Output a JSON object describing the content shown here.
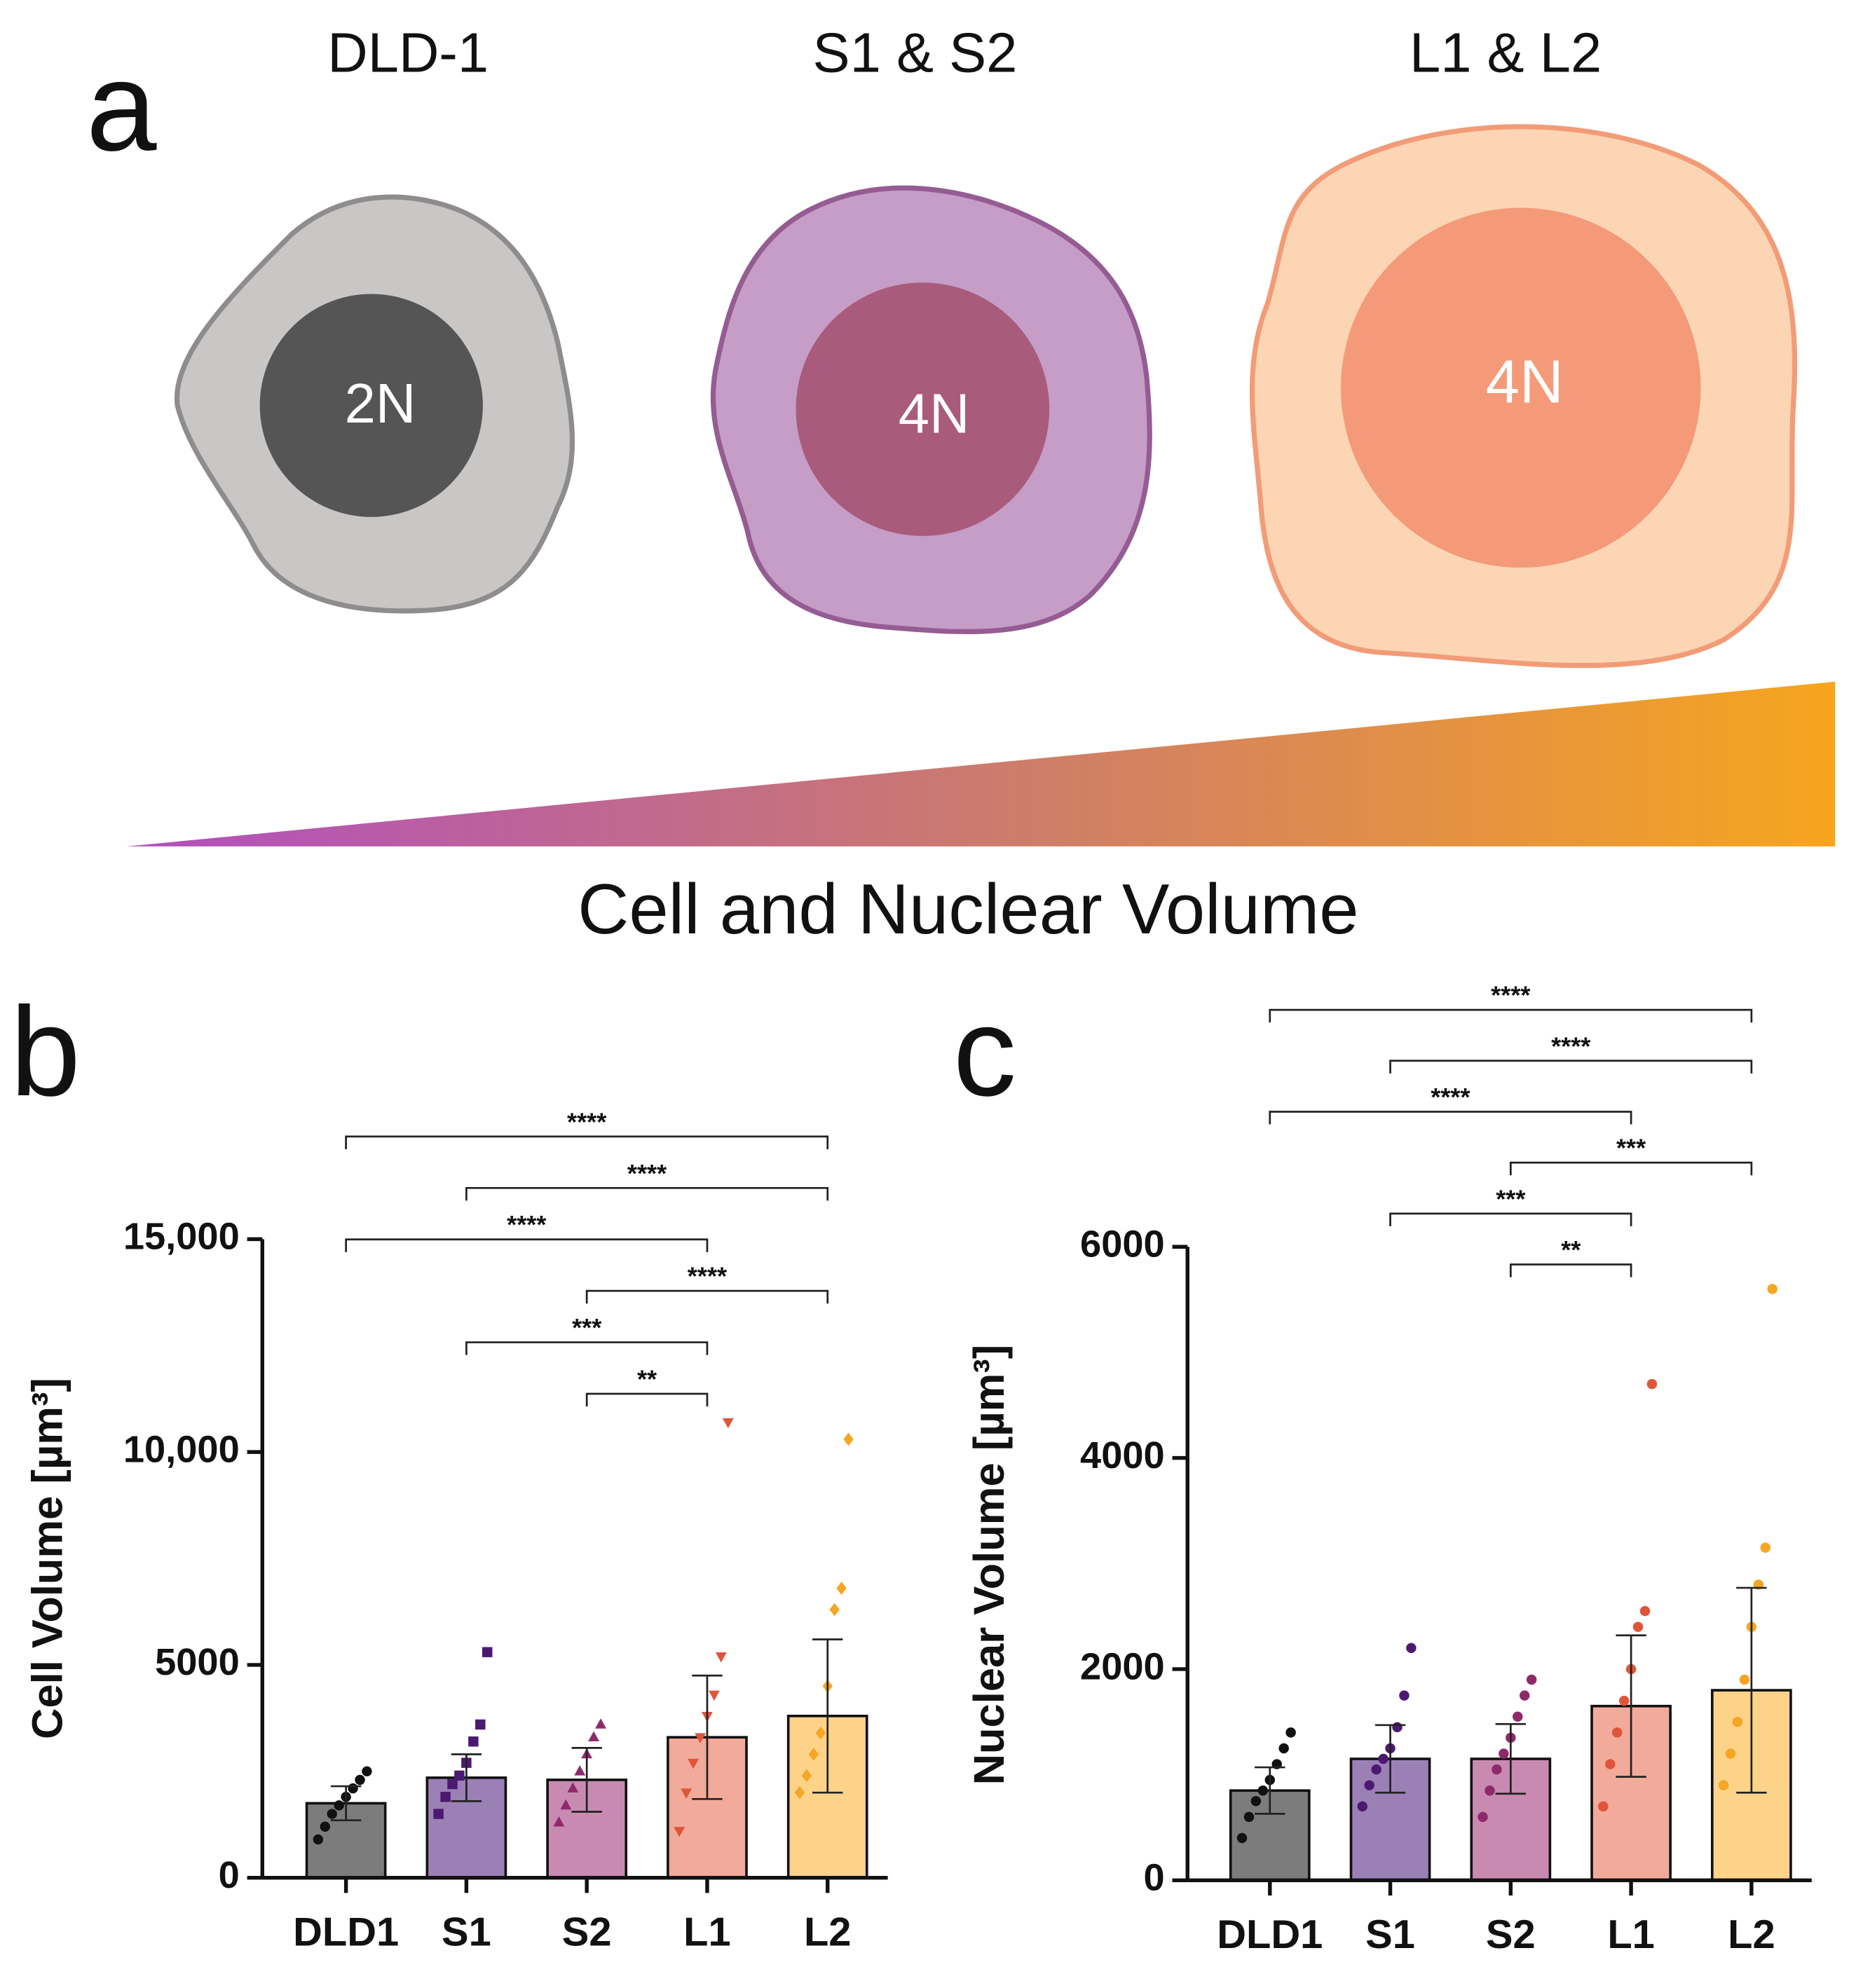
{
  "panel_labels": [
    "a",
    "b",
    "c"
  ],
  "diagram": {
    "cells": [
      {
        "title": "DLD-1",
        "nucleus": "2N"
      },
      {
        "title": "S1 & S2",
        "nucleus": "4N"
      },
      {
        "title": "L1 & L2",
        "nucleus": "4N"
      }
    ],
    "gradient_label": "Cell and Nuclear Volume"
  },
  "chart_data": [
    {
      "type": "bar",
      "ylabel": "Cell Volume [µm³]",
      "categories": [
        "DLD1",
        "S1",
        "S2",
        "L1",
        "L2"
      ],
      "values": [
        1750,
        2350,
        2300,
        3300,
        3800
      ],
      "errors": [
        400,
        550,
        750,
        1450,
        1800
      ],
      "colors": [
        "#7c7c7c",
        "#9b80b6",
        "#c98ab1",
        "#f2aa9a",
        "#fdd389"
      ],
      "point_colors": [
        "#111111",
        "#4b1a70",
        "#8e2a6c",
        "#e0553a",
        "#f5a623"
      ],
      "markers": [
        "circle",
        "square",
        "triangle-up",
        "triangle-down",
        "diamond"
      ],
      "points": [
        [
          900,
          1200,
          1500,
          1700,
          1900,
          2100,
          2300,
          2500
        ],
        [
          1500,
          1900,
          2200,
          2400,
          2700,
          3200,
          3600,
          5300
        ],
        [
          1300,
          1700,
          2100,
          2500,
          2900,
          3300,
          3600
        ],
        [
          1100,
          2000,
          2700,
          3300,
          3800,
          4300,
          5200,
          10700
        ],
        [
          2000,
          2400,
          2900,
          3400,
          4500,
          6300,
          6800,
          10300
        ]
      ],
      "ylim": [
        0,
        15000
      ],
      "yticks": [
        0,
        5000,
        {
          "value": 10000,
          "label": "10,000"
        },
        {
          "value": 15000,
          "label": "15,000"
        }
      ],
      "comparisons": [
        {
          "groups": [
            "DLD1",
            "L2"
          ],
          "label": "****"
        },
        {
          "groups": [
            "S1",
            "L2"
          ],
          "label": "****"
        },
        {
          "groups": [
            "DLD1",
            "L1"
          ],
          "label": "****"
        },
        {
          "groups": [
            "S2",
            "L2"
          ],
          "label": "****"
        },
        {
          "groups": [
            "S1",
            "L1"
          ],
          "label": "***"
        },
        {
          "groups": [
            "S2",
            "L1"
          ],
          "label": "**"
        }
      ]
    },
    {
      "type": "bar",
      "ylabel": "Nuclear Volume [µm³]",
      "categories": [
        "DLD1",
        "S1",
        "S2",
        "L1",
        "L2"
      ],
      "values": [
        850,
        1150,
        1150,
        1650,
        1800
      ],
      "errors": [
        220,
        320,
        330,
        670,
        970
      ],
      "colors": [
        "#7c7c7c",
        "#9b80b6",
        "#c98ab1",
        "#f2aa9a",
        "#fdd389"
      ],
      "point_colors": [
        "#111111",
        "#4b1a70",
        "#8e2a6c",
        "#e0553a",
        "#f5a623"
      ],
      "markers": [
        "circle",
        "circle",
        "circle",
        "circle",
        "circle"
      ],
      "points": [
        [
          400,
          600,
          750,
          850,
          950,
          1100,
          1250,
          1400
        ],
        [
          700,
          900,
          1050,
          1150,
          1250,
          1450,
          1750,
          2200
        ],
        [
          600,
          850,
          1050,
          1200,
          1350,
          1550,
          1750,
          1900
        ],
        [
          700,
          1100,
          1400,
          1700,
          2000,
          2400,
          2550,
          4700
        ],
        [
          900,
          1200,
          1500,
          1900,
          2400,
          2800,
          3150,
          5600
        ]
      ],
      "ylim": [
        0,
        6000
      ],
      "yticks": [
        0,
        2000,
        4000,
        6000
      ],
      "comparisons": [
        {
          "groups": [
            "DLD1",
            "L2"
          ],
          "label": "****"
        },
        {
          "groups": [
            "S1",
            "L2"
          ],
          "label": "****"
        },
        {
          "groups": [
            "DLD1",
            "L1"
          ],
          "label": "****"
        },
        {
          "groups": [
            "S2",
            "L2"
          ],
          "label": "***"
        },
        {
          "groups": [
            "S1",
            "L1"
          ],
          "label": "***"
        },
        {
          "groups": [
            "S2",
            "L1"
          ],
          "label": "**"
        }
      ]
    }
  ]
}
